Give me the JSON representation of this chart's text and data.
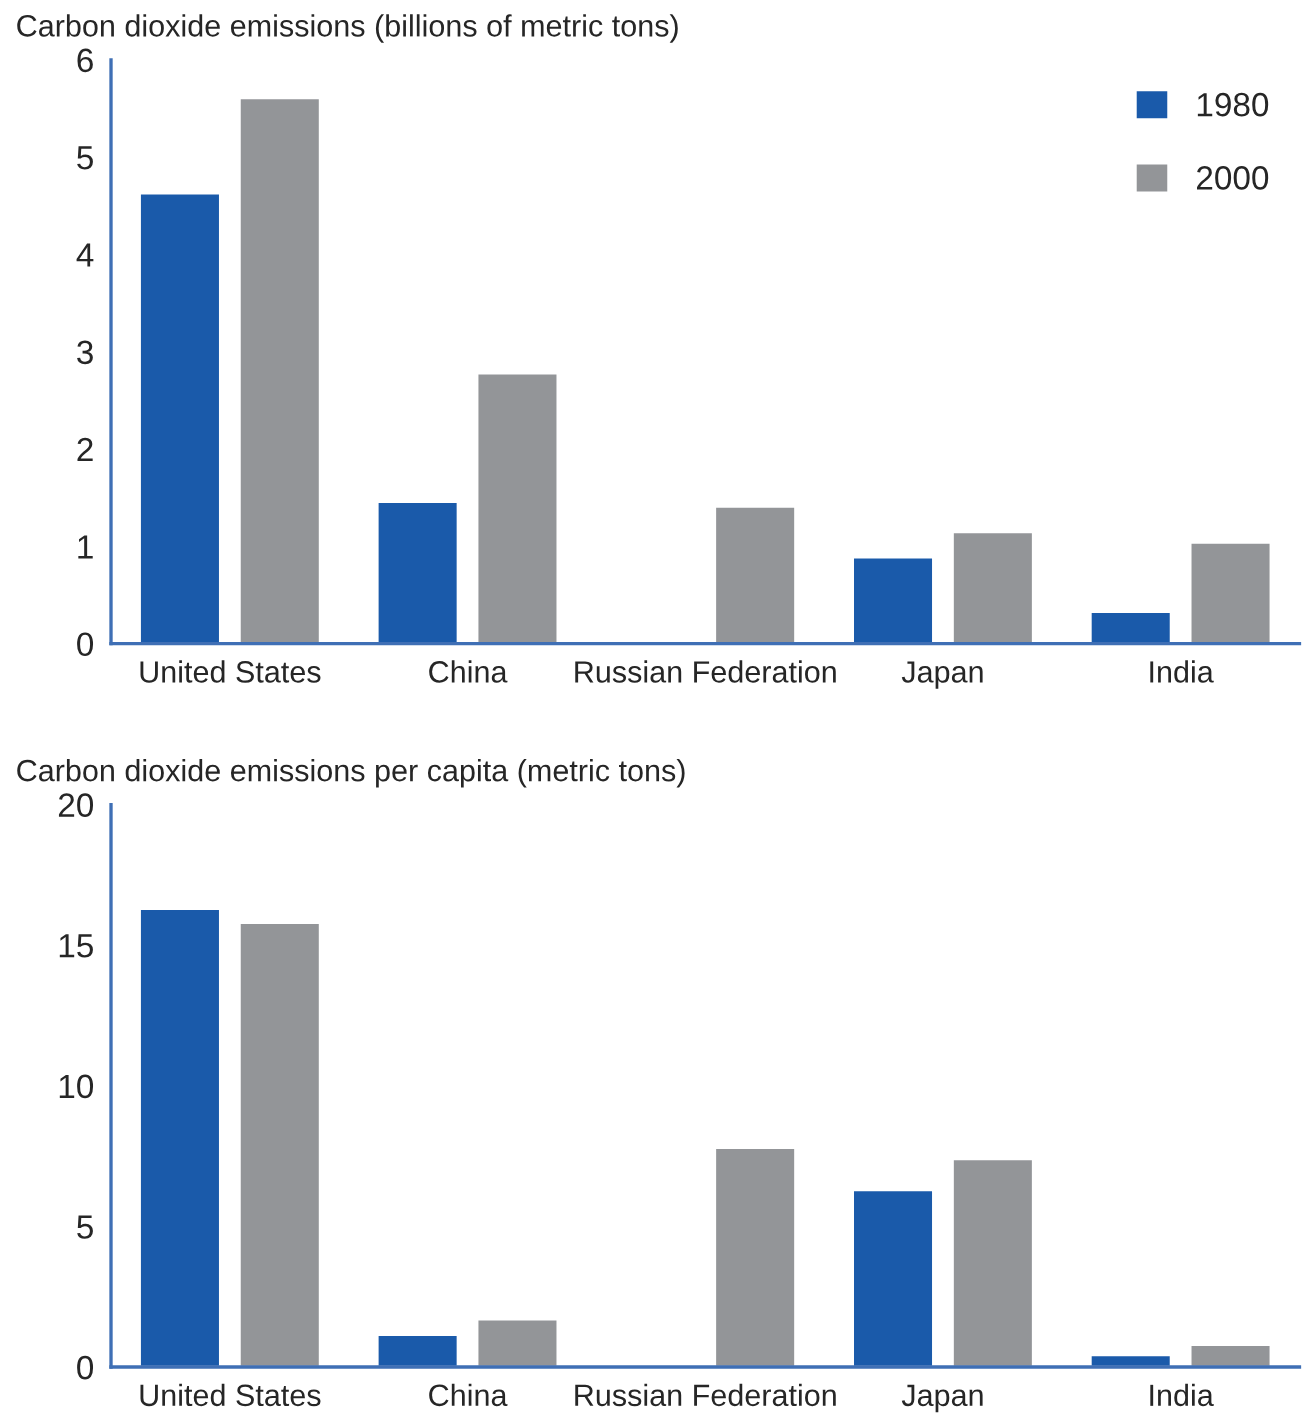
{
  "chart_data": [
    {
      "type": "bar",
      "title": "Carbon dioxide emissions (billions of metric tons)",
      "categories": [
        "United States",
        "China",
        "Russian Federation",
        "Japan",
        "India"
      ],
      "series": [
        {
          "name": "1980",
          "color": "#1a5aaa",
          "values": [
            4.63,
            1.46,
            null,
            0.89,
            0.33
          ]
        },
        {
          "name": "2000",
          "color": "#939598",
          "values": [
            5.61,
            2.78,
            1.41,
            1.15,
            1.04
          ]
        }
      ],
      "ylim": [
        0,
        6
      ],
      "yticks": [
        0,
        1,
        2,
        3,
        4,
        5,
        6
      ],
      "grid": false,
      "legend": "top right"
    },
    {
      "type": "bar",
      "title": "Carbon dioxide emissions per capita (metric tons)",
      "categories": [
        "United States",
        "China",
        "Russian Federation",
        "Japan",
        "India"
      ],
      "series": [
        {
          "color": "#1a5aaa",
          "values": [
            16.3,
            1.15,
            null,
            6.3,
            0.43
          ]
        },
        {
          "color": "#939598",
          "values": [
            15.8,
            1.7,
            7.8,
            7.4,
            0.8
          ]
        }
      ],
      "ylim": [
        0,
        20
      ],
      "yticks": [
        0,
        5,
        10,
        15,
        20
      ],
      "grid": false,
      "legend": false
    }
  ]
}
